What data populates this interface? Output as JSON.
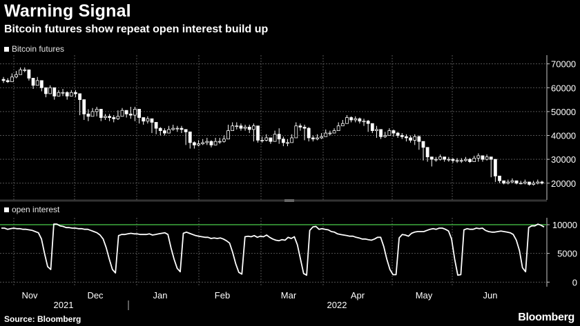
{
  "header": {
    "title": "Warning Signal",
    "subtitle": "Bitcoin futures show repeat open interest build up"
  },
  "footer": {
    "source": "Source: Bloomberg",
    "brand": "Bloomberg"
  },
  "colors": {
    "background": "#000000",
    "candle": "#ffffff",
    "line": "#ffffff",
    "reference_line": "#3fae3f",
    "grid": "#555555"
  },
  "chart_data": [
    {
      "type": "candlestick",
      "legend": "Bitcoin futures",
      "yticks": [
        20000,
        30000,
        40000,
        50000,
        60000,
        70000
      ],
      "ylim": [
        13000,
        72500
      ],
      "grid": true,
      "months": [
        "Nov",
        "Dec",
        "Jan",
        "Feb",
        "Mar",
        "Apr",
        "May",
        "Jun"
      ],
      "years": [
        "2021",
        "2022"
      ],
      "close": [
        63000,
        62500,
        64500,
        65500,
        67500,
        67500,
        64000,
        61000,
        63000,
        60000,
        57500,
        60000,
        56500,
        58000,
        58000,
        56500,
        58000,
        57500,
        55000,
        49000,
        48000,
        50000,
        51000,
        47500,
        48000,
        47500,
        47000,
        48000,
        50500,
        49000,
        48500,
        51000,
        47500,
        46000,
        47000,
        45500,
        43000,
        42000,
        41000,
        42500,
        43000,
        43000,
        42500,
        41500,
        37000,
        36000,
        36500,
        37000,
        37500,
        36000,
        37500,
        37500,
        38500,
        42000,
        44000,
        44000,
        43000,
        43500,
        42500,
        44000,
        38000,
        38000,
        39000,
        37500,
        40500,
        38500,
        37000,
        37000,
        39000,
        44000,
        43500,
        43000,
        39000,
        38500,
        39000,
        39500,
        41000,
        41000,
        42000,
        44000,
        45000,
        47500,
        46500,
        47000,
        46000,
        46000,
        45000,
        42000,
        42500,
        39500,
        40000,
        42000,
        41000,
        40000,
        39500,
        39000,
        38000,
        39500,
        37500,
        35000,
        31000,
        30000,
        30000,
        31000,
        30000,
        30000,
        29500,
        29500,
        29500,
        30000,
        29000,
        30500,
        31500,
        30000,
        31000,
        30000,
        23000,
        21000,
        20000,
        20500,
        21000,
        20000,
        20000,
        20500,
        19500,
        20000,
        20500,
        20000
      ],
      "low": [
        62000,
        62000,
        63000,
        64000,
        66000,
        66500,
        63000,
        59500,
        61500,
        58500,
        56000,
        58500,
        55000,
        56500,
        56500,
        55000,
        56500,
        56000,
        48500,
        46500,
        46000,
        49000,
        48000,
        46000,
        46500,
        46000,
        45500,
        46500,
        48000,
        47500,
        47000,
        46000,
        45000,
        44500,
        45000,
        41000,
        40500,
        40000,
        40000,
        41000,
        42000,
        41500,
        41000,
        36000,
        34500,
        34500,
        35500,
        36000,
        36000,
        35000,
        36000,
        36500,
        37000,
        40500,
        42500,
        42500,
        42000,
        42000,
        41000,
        37500,
        37000,
        37000,
        37500,
        36500,
        38500,
        36500,
        35500,
        35500,
        37500,
        42500,
        42000,
        38000,
        37500,
        37500,
        38000,
        38500,
        40000,
        40000,
        41000,
        43000,
        44000,
        46000,
        45500,
        45500,
        45000,
        44000,
        41500,
        41000,
        39000,
        38500,
        39000,
        40500,
        39500,
        39000,
        38500,
        37500,
        37000,
        36000,
        34000,
        29500,
        29000,
        27000,
        29000,
        29500,
        29000,
        29000,
        28500,
        28500,
        28500,
        29000,
        28500,
        29500,
        29000,
        29000,
        29500,
        22500,
        20500,
        20000,
        19500,
        19500,
        20000,
        19500,
        19500,
        19500,
        19000,
        19000,
        19500,
        19500
      ],
      "high": [
        64500,
        64000,
        66000,
        67000,
        68500,
        68500,
        67000,
        62500,
        64500,
        61500,
        60000,
        61000,
        58500,
        59000,
        59500,
        58500,
        59000,
        59000,
        55500,
        50500,
        51000,
        51500,
        52000,
        50500,
        49000,
        49000,
        48500,
        50500,
        51500,
        50500,
        52000,
        52000,
        49000,
        47500,
        48000,
        47000,
        44500,
        43500,
        43000,
        44000,
        44500,
        44000,
        44000,
        42500,
        38500,
        37500,
        38000,
        38500,
        39000,
        38000,
        39000,
        39000,
        40000,
        44500,
        45500,
        45500,
        45000,
        44500,
        44500,
        45000,
        39500,
        39500,
        40500,
        39000,
        42000,
        43000,
        39500,
        38500,
        40500,
        45500,
        45000,
        44500,
        43500,
        40000,
        40500,
        41000,
        42500,
        42000,
        43000,
        45500,
        46500,
        48500,
        48000,
        48000,
        47500,
        47000,
        46500,
        43500,
        44000,
        42000,
        41500,
        43000,
        42500,
        41500,
        41000,
        40500,
        40000,
        40500,
        40000,
        36000,
        32000,
        31000,
        31000,
        32000,
        31000,
        31000,
        30500,
        30500,
        30500,
        31000,
        30500,
        31500,
        32500,
        31500,
        32000,
        31000,
        24000,
        22000,
        21000,
        21500,
        22000,
        21000,
        21000,
        21500,
        20500,
        21000,
        21500,
        21000
      ]
    },
    {
      "type": "line",
      "legend": "open interest",
      "yticks": [
        0,
        5000,
        10000
      ],
      "ylim": [
        -800,
        11200
      ],
      "reference_line": 10000,
      "grid": true,
      "values": [
        9400,
        9400,
        9200,
        9300,
        9400,
        9300,
        9300,
        9200,
        9200,
        9100,
        9000,
        8800,
        8600,
        7500,
        5000,
        2700,
        2200,
        10100,
        10100,
        9800,
        9700,
        9500,
        9500,
        9400,
        9400,
        9300,
        9300,
        9200,
        9200,
        9000,
        8800,
        8600,
        8200,
        7500,
        6000,
        4000,
        2200,
        1600,
        8100,
        8300,
        8300,
        8400,
        8500,
        8400,
        8400,
        8300,
        8300,
        8300,
        8400,
        8200,
        8300,
        8400,
        8500,
        8600,
        8300,
        6000,
        4000,
        2400,
        1800,
        8500,
        8700,
        8500,
        8300,
        8100,
        8000,
        7900,
        7800,
        7800,
        7600,
        7700,
        7600,
        7700,
        7500,
        7200,
        6800,
        5200,
        3200,
        1700,
        1400,
        7900,
        8000,
        7900,
        8100,
        7800,
        8000,
        7900,
        8200,
        7800,
        7500,
        7300,
        7200,
        7400,
        7300,
        7800,
        7600,
        7900,
        6500,
        4000,
        1500,
        1200,
        9000,
        9600,
        9700,
        9200,
        9300,
        9200,
        9100,
        8800,
        8700,
        8400,
        8300,
        8200,
        8100,
        8000,
        8000,
        7800,
        7700,
        7500,
        7500,
        7400,
        7300,
        7500,
        7800,
        7800,
        6200,
        4000,
        2200,
        1300,
        1300,
        7700,
        8300,
        8200,
        8000,
        8500,
        8700,
        8800,
        8800,
        8800,
        9000,
        9200,
        9300,
        9200,
        9400,
        9400,
        9200,
        8900,
        7500,
        4000,
        1200,
        1300,
        9100,
        9300,
        9200,
        9200,
        9400,
        9300,
        9400,
        9000,
        8800,
        8700,
        8700,
        8800,
        8900,
        8800,
        8700,
        8600,
        8300,
        7300,
        5500,
        2500,
        1800,
        9500,
        9800,
        9800,
        10100,
        9900,
        9600
      ]
    }
  ]
}
